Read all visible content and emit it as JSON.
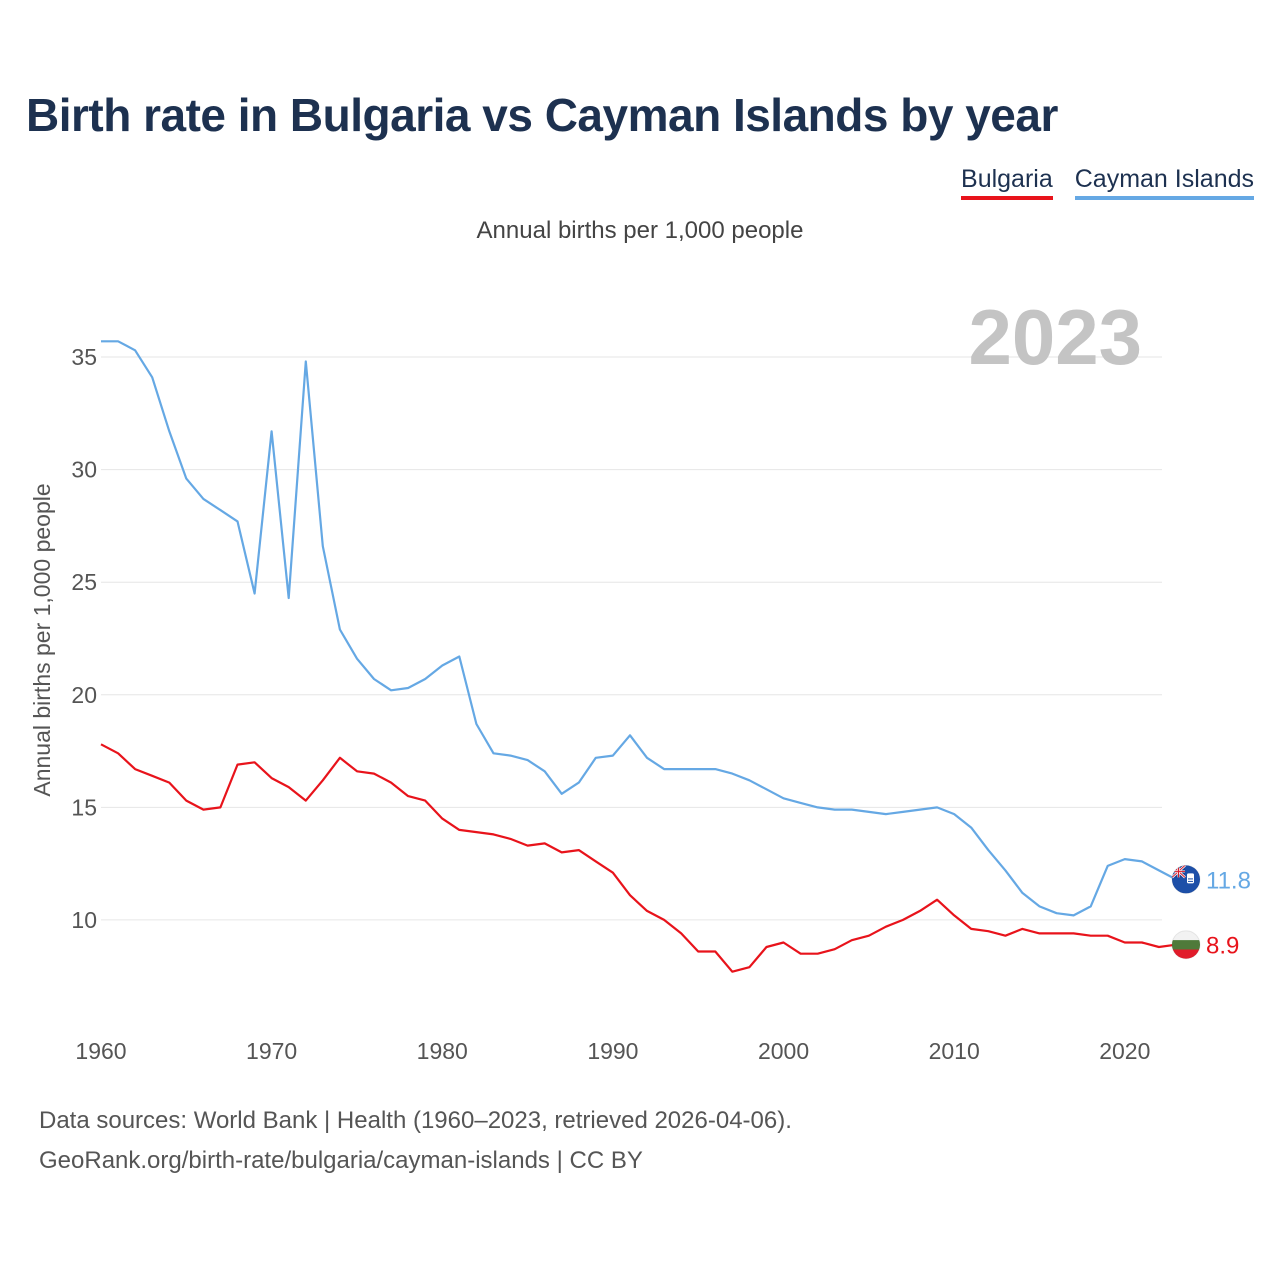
{
  "title": "Birth rate in Bulgaria vs Cayman Islands by year",
  "subtitle": "Annual births per 1,000 people",
  "year_watermark": "2023",
  "legend": [
    {
      "label": "Bulgaria",
      "color": "#e8131b"
    },
    {
      "label": "Cayman Islands",
      "color": "#65a8e4"
    }
  ],
  "source_line1": "Data sources: World Bank | Health (1960–2023, retrieved 2026-04-06).",
  "source_line2": "GeoRank.org/birth-rate/bulgaria/cayman-islands | CC BY",
  "chart_data": {
    "type": "line",
    "title": "Birth rate in Bulgaria vs Cayman Islands by year",
    "xlabel": "",
    "ylabel": "Annual births per 1,000 people",
    "xlim": [
      1960,
      2023
    ],
    "ylim": [
      6,
      37
    ],
    "xticks": [
      1960,
      1970,
      1980,
      1990,
      2000,
      2010,
      2020
    ],
    "yticks": [
      10,
      15,
      20,
      25,
      30,
      35
    ],
    "grid": true,
    "x": [
      1960,
      1961,
      1962,
      1963,
      1964,
      1965,
      1966,
      1967,
      1968,
      1969,
      1970,
      1971,
      1972,
      1973,
      1974,
      1975,
      1976,
      1977,
      1978,
      1979,
      1980,
      1981,
      1982,
      1983,
      1984,
      1985,
      1986,
      1987,
      1988,
      1989,
      1990,
      1991,
      1992,
      1993,
      1994,
      1995,
      1996,
      1997,
      1998,
      1999,
      2000,
      2001,
      2002,
      2003,
      2004,
      2005,
      2006,
      2007,
      2008,
      2009,
      2010,
      2011,
      2012,
      2013,
      2014,
      2015,
      2016,
      2017,
      2018,
      2019,
      2020,
      2021,
      2022,
      2023
    ],
    "series": [
      {
        "name": "Bulgaria",
        "color": "#e8131b",
        "end_label": "8.9",
        "values": [
          17.8,
          17.4,
          16.7,
          16.4,
          16.1,
          15.3,
          14.9,
          15.0,
          16.9,
          17.0,
          16.3,
          15.9,
          15.3,
          16.2,
          17.2,
          16.6,
          16.5,
          16.1,
          15.5,
          15.3,
          14.5,
          14.0,
          13.9,
          13.8,
          13.6,
          13.3,
          13.4,
          13.0,
          13.1,
          12.6,
          12.1,
          11.1,
          10.4,
          10.0,
          9.4,
          8.6,
          8.6,
          7.7,
          7.9,
          8.8,
          9.0,
          8.5,
          8.5,
          8.7,
          9.1,
          9.3,
          9.7,
          10.0,
          10.4,
          10.9,
          10.2,
          9.6,
          9.5,
          9.3,
          9.6,
          9.4,
          9.4,
          9.4,
          9.3,
          9.3,
          9.0,
          9.0,
          8.8,
          8.9
        ]
      },
      {
        "name": "Cayman Islands",
        "color": "#65a8e4",
        "end_label": "11.8",
        "values": [
          35.7,
          35.7,
          35.3,
          34.1,
          31.7,
          29.6,
          28.7,
          28.2,
          27.7,
          24.5,
          31.7,
          24.3,
          34.8,
          26.6,
          22.9,
          21.6,
          20.7,
          20.2,
          20.3,
          20.7,
          21.3,
          21.7,
          18.7,
          17.4,
          17.3,
          17.1,
          16.6,
          15.6,
          16.1,
          17.2,
          17.3,
          18.2,
          17.2,
          16.7,
          16.7,
          16.7,
          16.7,
          16.5,
          16.2,
          15.8,
          15.4,
          15.2,
          15.0,
          14.9,
          14.9,
          14.8,
          14.7,
          14.8,
          14.9,
          15.0,
          14.7,
          14.1,
          13.1,
          12.2,
          11.2,
          10.6,
          10.3,
          10.2,
          10.6,
          12.4,
          12.7,
          12.6,
          12.2,
          11.8
        ]
      }
    ]
  }
}
